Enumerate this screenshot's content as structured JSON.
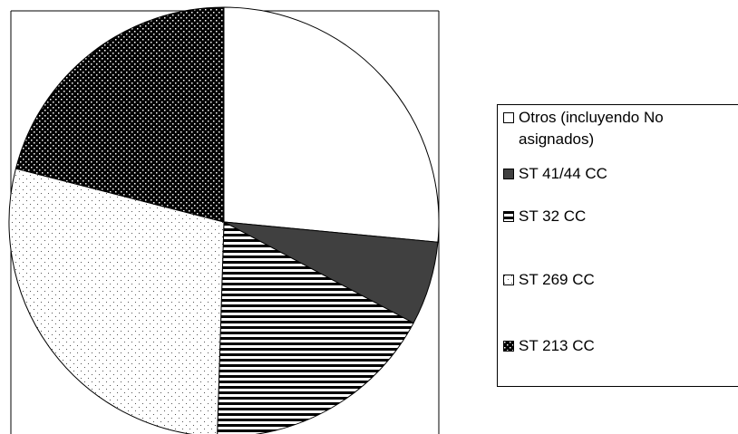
{
  "chart_data": {
    "type": "pie",
    "categories": [
      "Otros (incluyendo No asignados)",
      "ST 41/44 CC",
      "ST 32 CC",
      "ST 269 CC",
      "ST 213 CC"
    ],
    "values": [
      26.5,
      6.3,
      17.7,
      28.5,
      21.0
    ],
    "colors": [
      "#ffffff",
      "#404040",
      "#ffffff",
      "#ffffff",
      "#000000"
    ],
    "patterns": [
      "none",
      "none",
      "hstripes",
      "dots",
      "darkdots"
    ],
    "start_angle": 0,
    "direction": "clockwise",
    "legend": "right"
  }
}
